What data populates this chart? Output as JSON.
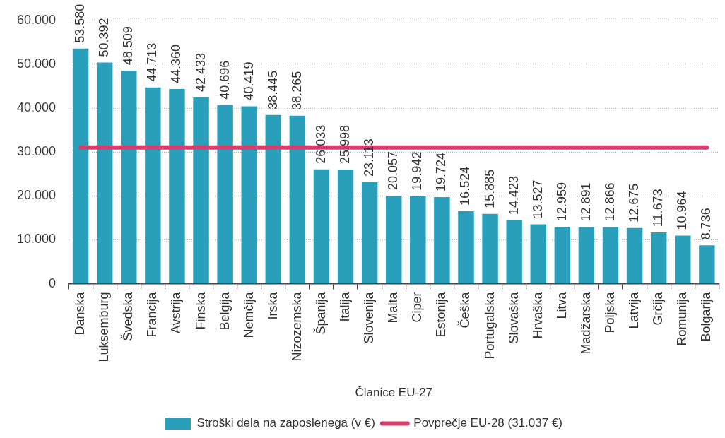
{
  "chart_data": {
    "type": "bar",
    "categories": [
      "Danska",
      "Luksemburg",
      "Švedska",
      "Francija",
      "Avstrija",
      "Finska",
      "Belgija",
      "Nemčija",
      "Irska",
      "Nizozemska",
      "Španija",
      "Italija",
      "Slovenija",
      "Malta",
      "Ciper",
      "Estonija",
      "Češka",
      "Portugalska",
      "Slovaška",
      "Hrvaška",
      "Litva",
      "Madžarska",
      "Poljska",
      "Latvija",
      "Grčija",
      "Romunija",
      "Bolgarija"
    ],
    "series": [
      {
        "name": "Stroški dela na zaposlenega (v €)",
        "color": "#2a9fbc",
        "values": [
          53580,
          50392,
          48509,
          44713,
          44360,
          42433,
          40696,
          40419,
          38445,
          38265,
          26033,
          25998,
          23113,
          20057,
          19942,
          19724,
          16524,
          15885,
          14423,
          13527,
          12959,
          12891,
          12866,
          12675,
          11673,
          10964,
          8736
        ],
        "value_labels": [
          "53.580",
          "50.392",
          "48.509",
          "44.713",
          "44.360",
          "42.433",
          "40.696",
          "40.419",
          "38.445",
          "38.265",
          "26.033",
          "25.998",
          "23.113",
          "20.057",
          "19.942",
          "19.724",
          "16.524",
          "15.885",
          "14.423",
          "13.527",
          "12.959",
          "12.891",
          "12.866",
          "12.675",
          "11.673",
          "10.964",
          "8.736"
        ]
      },
      {
        "type": "line",
        "name": "Povprečje EU-28 (31.037 €)",
        "color": "#d63f6c",
        "values": [
          31037,
          31037,
          31037,
          31037,
          31037,
          31037,
          31037,
          31037,
          31037,
          31037,
          31037,
          31037,
          31037,
          31037,
          31037,
          31037,
          31037,
          31037,
          31037,
          31037,
          31037,
          31037,
          31037,
          31037,
          31037,
          31037,
          31037
        ]
      }
    ],
    "xlabel": "Članice EU-27",
    "ylim": [
      0,
      60000
    ],
    "yticks": [
      0,
      {
        "value": 10000,
        "label": "10.000"
      },
      {
        "value": 20000,
        "label": "20.000"
      },
      {
        "value": 30000,
        "label": "30.000"
      },
      {
        "value": 40000,
        "label": "40.000"
      },
      {
        "value": 50000,
        "label": "50.000"
      },
      {
        "value": 60000,
        "label": "60.000"
      }
    ],
    "grid": "y",
    "legend": "bottom"
  }
}
